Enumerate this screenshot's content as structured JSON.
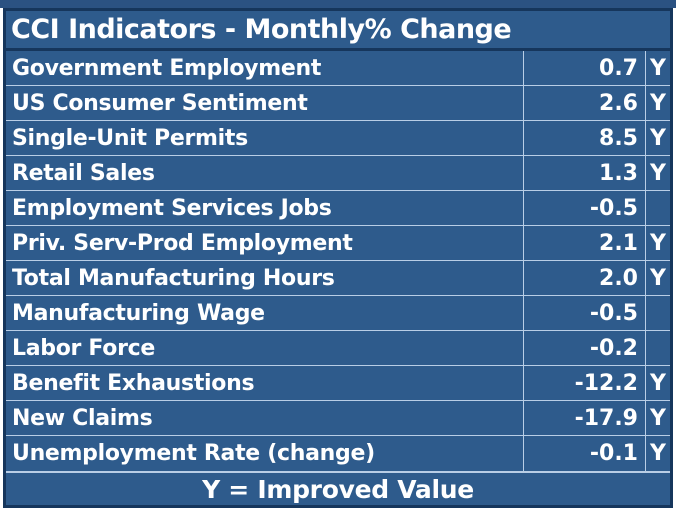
{
  "chart_data": {
    "type": "table",
    "title": "CCI Indicators - Monthly% Change",
    "footer": "Y = Improved Value",
    "flag_meaning": "Y = Improved Value",
    "rows": [
      {
        "label": "Government Employment",
        "value": "0.7",
        "flag": "Y"
      },
      {
        "label": "US Consumer Sentiment",
        "value": "2.6",
        "flag": "Y"
      },
      {
        "label": "Single-Unit Permits",
        "value": "8.5",
        "flag": "Y"
      },
      {
        "label": "Retail Sales",
        "value": "1.3",
        "flag": "Y"
      },
      {
        "label": "Employment Services Jobs",
        "value": "-0.5",
        "flag": ""
      },
      {
        "label": "Priv. Serv-Prod Employment",
        "value": "2.1",
        "flag": "Y"
      },
      {
        "label": "Total Manufacturing Hours",
        "value": "2.0",
        "flag": "Y"
      },
      {
        "label": "Manufacturing Wage",
        "value": "-0.5",
        "flag": ""
      },
      {
        "label": "Labor Force",
        "value": "-0.2",
        "flag": ""
      },
      {
        "label": "Benefit Exhaustions",
        "value": "-12.2",
        "flag": "Y"
      },
      {
        "label": "New Claims",
        "value": "-17.9",
        "flag": "Y"
      },
      {
        "label": "Unemployment Rate (change)",
        "value": "-0.1",
        "flag": "Y"
      }
    ]
  },
  "colors": {
    "background_blue": "#2e5b8c",
    "frame_navy": "#16365c",
    "divider_light_blue": "#b9cee6",
    "text_white": "#ffffff",
    "top_strip_blue": "#2b5282",
    "page_margin_white": "#ffffff"
  }
}
